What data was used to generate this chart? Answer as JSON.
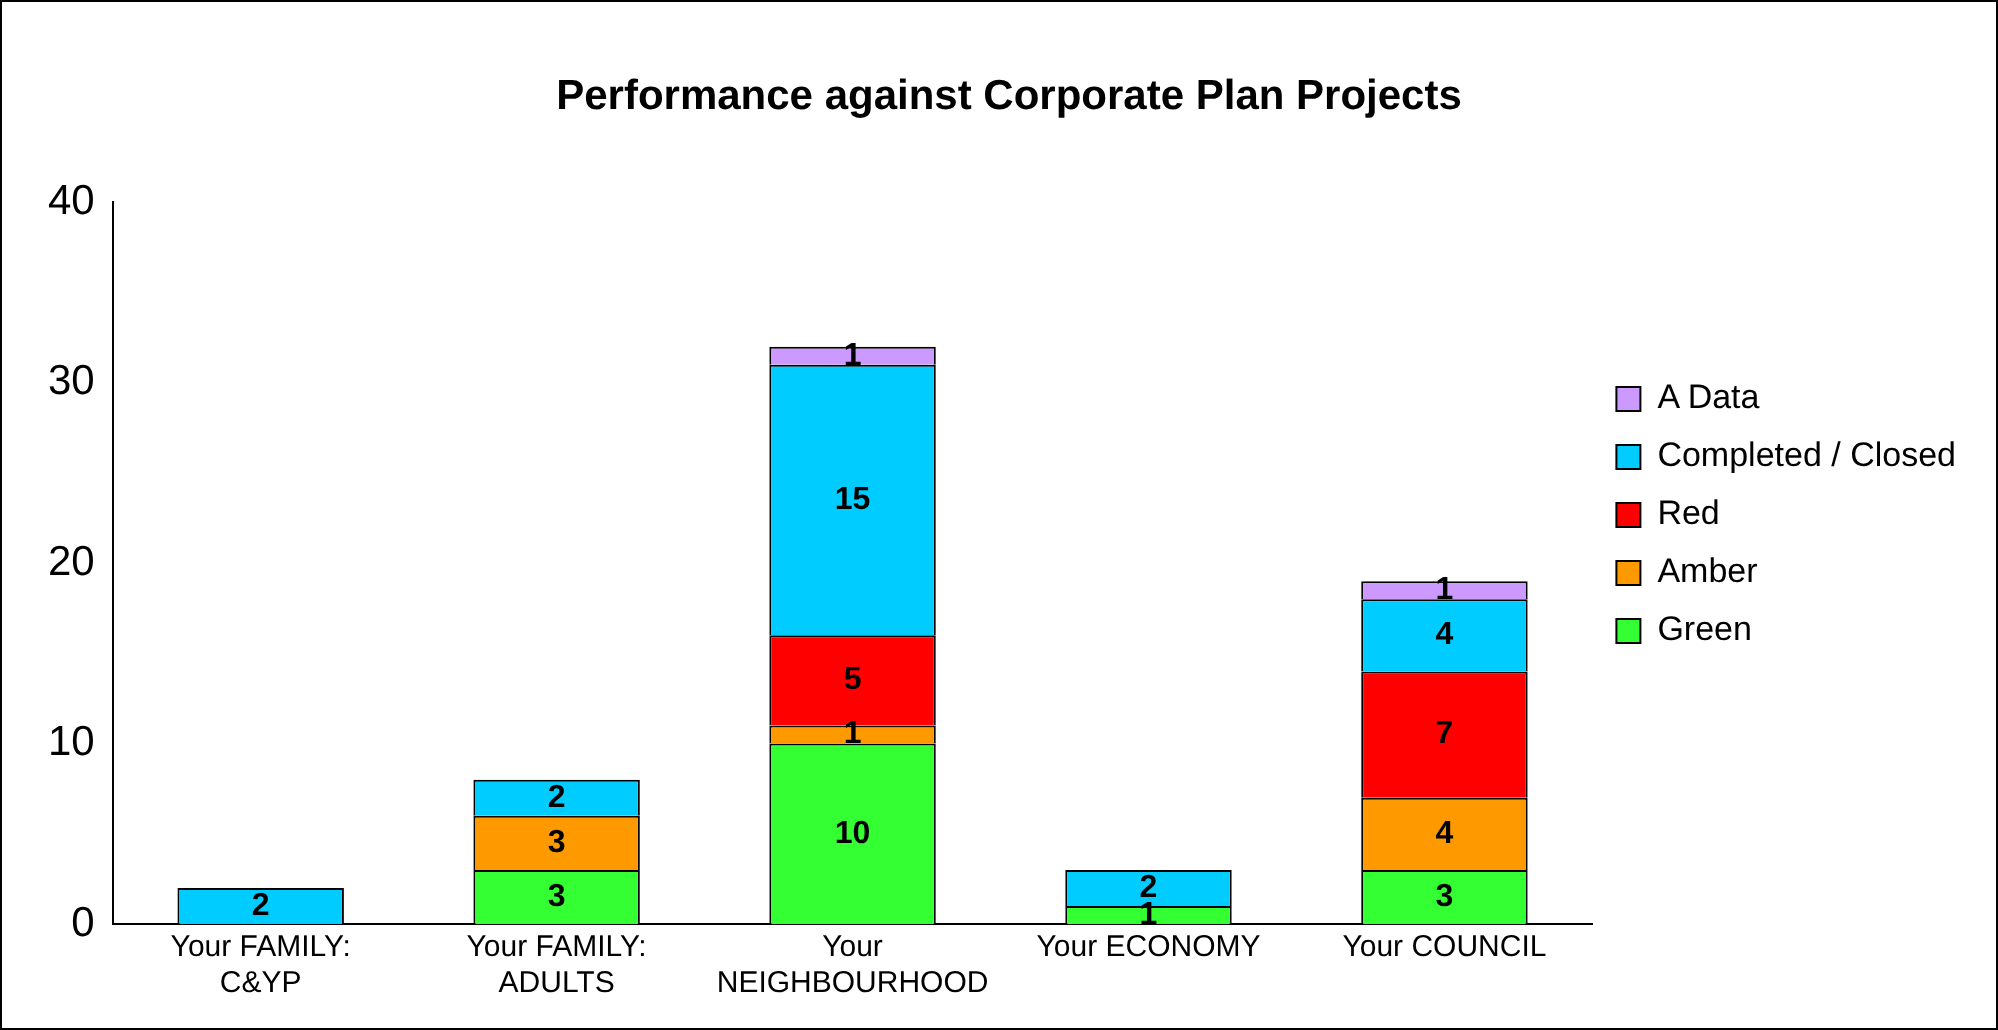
{
  "chart_data": {
    "type": "bar",
    "title": "Performance against Corporate Plan Projects",
    "categories": [
      "Your FAMILY: C&YP",
      "Your FAMILY: ADULTS",
      "Your NEIGHBOURHOOD",
      "Your ECONOMY",
      "Your COUNCIL"
    ],
    "stacked": true,
    "ylim": [
      0,
      40
    ],
    "yticks": [
      0,
      10,
      20,
      30,
      40
    ],
    "grid": false,
    "legend": "right",
    "data_labels": true,
    "series": [
      {
        "name": "Green",
        "color": "#33ff33",
        "values": [
          null,
          3,
          10,
          1,
          3
        ]
      },
      {
        "name": "Amber",
        "color": "#ff9900",
        "values": [
          null,
          3,
          1,
          null,
          4
        ]
      },
      {
        "name": "Red",
        "color": "#ff0000",
        "values": [
          null,
          null,
          5,
          null,
          7
        ]
      },
      {
        "name": "Completed / Closed",
        "color": "#00ccff",
        "values": [
          2,
          2,
          15,
          2,
          4
        ]
      },
      {
        "name": "A Data",
        "color": "#cc99ff",
        "values": [
          null,
          null,
          1,
          null,
          1
        ]
      }
    ]
  }
}
